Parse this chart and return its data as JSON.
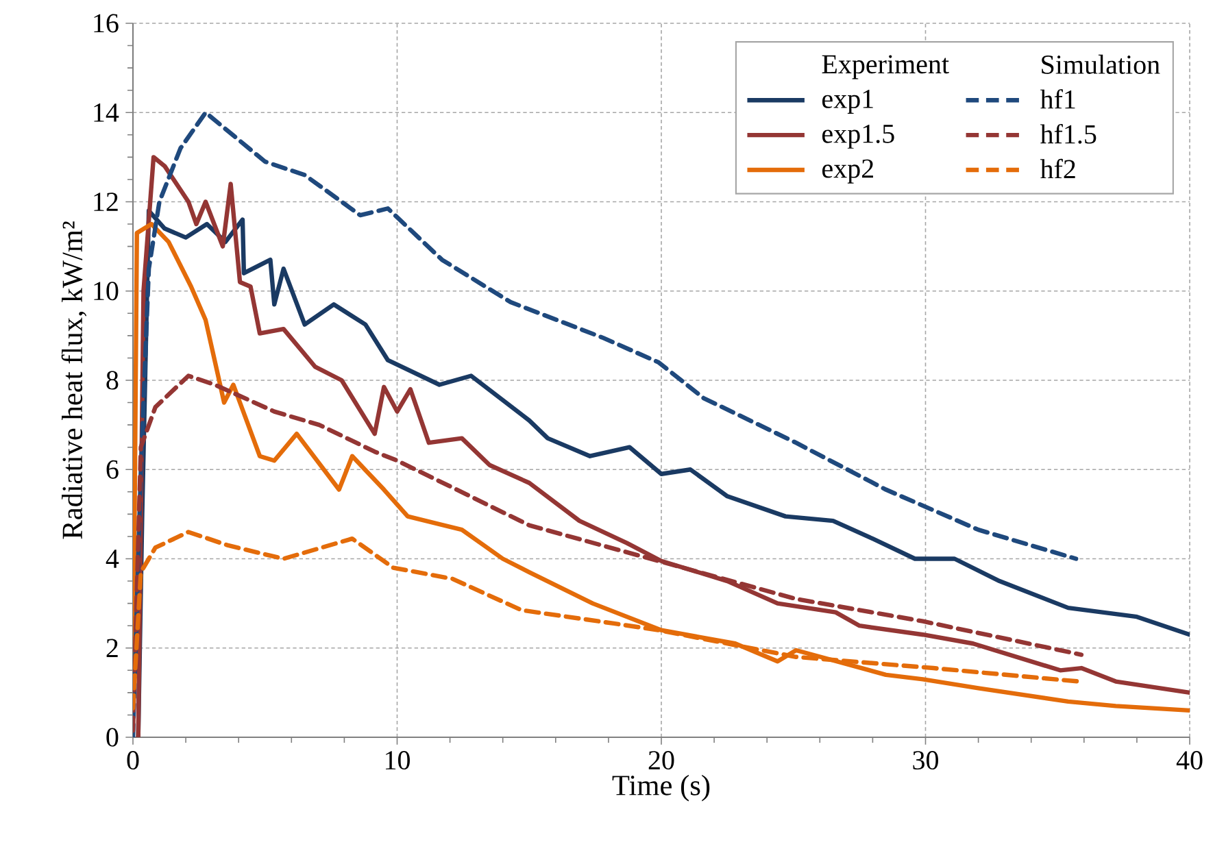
{
  "chart_data": {
    "type": "line",
    "xlabel": "Time (s)",
    "ylabel": "Radiative  heat flux,  kW/m²",
    "annotations": [
      "Experiment",
      "Simulation"
    ],
    "xlim": [
      0,
      40
    ],
    "ylim": [
      0,
      16
    ],
    "xticks": [
      0,
      10,
      20,
      30,
      40
    ],
    "yticks": [
      0,
      2,
      4,
      6,
      8,
      10,
      12,
      14,
      16
    ],
    "grid": true,
    "legend": "top right",
    "marker": "none",
    "series": [
      {
        "name": "exp1",
        "color": "#1a3a63",
        "line_style": "solid",
        "x": [
          0.2,
          0.35,
          0.6,
          1.2,
          2.0,
          2.8,
          3.5,
          4.15,
          4.2,
          5.2,
          5.35,
          5.7,
          6.5,
          7.6,
          8.8,
          9.65,
          11.6,
          12.8,
          15.0,
          15.7,
          17.3,
          18.8,
          20.0,
          21.1,
          22.5,
          24.7,
          26.5,
          28.0,
          29.6,
          31.1,
          32.8,
          35.4,
          38.0,
          40
        ],
        "values": [
          0,
          5,
          11.8,
          11.4,
          11.2,
          11.5,
          11.1,
          11.6,
          10.4,
          10.7,
          9.7,
          10.5,
          9.25,
          9.7,
          9.25,
          8.45,
          7.9,
          8.1,
          7.1,
          6.7,
          6.3,
          6.5,
          5.9,
          6.0,
          5.4,
          4.95,
          4.85,
          4.45,
          4.0,
          4.0,
          3.5,
          2.9,
          2.7,
          2.3
        ]
      },
      {
        "name": "exp1.5",
        "color": "#943634",
        "line_style": "solid",
        "x": [
          0.2,
          0.4,
          0.78,
          1.2,
          2.1,
          2.4,
          2.75,
          3.4,
          3.7,
          4.05,
          4.45,
          4.8,
          5.7,
          6.9,
          7.9,
          9.15,
          9.5,
          10.0,
          10.5,
          11.2,
          12.45,
          13.5,
          15.0,
          16.9,
          18.7,
          20.0,
          22.5,
          24.4,
          26.6,
          27.5,
          29.9,
          31.8,
          35.1,
          35.9,
          37.2,
          40
        ],
        "values": [
          0,
          10,
          13.0,
          12.8,
          12.0,
          11.5,
          12.0,
          11.0,
          12.4,
          10.2,
          10.1,
          9.05,
          9.15,
          8.3,
          8.0,
          6.8,
          7.85,
          7.3,
          7.8,
          6.6,
          6.7,
          6.1,
          5.7,
          4.85,
          4.35,
          3.95,
          3.5,
          3.0,
          2.8,
          2.5,
          2.3,
          2.1,
          1.5,
          1.55,
          1.25,
          1.0
        ]
      },
      {
        "name": "exp2",
        "color": "#e46c0a",
        "line_style": "solid",
        "x": [
          0,
          0.15,
          0.7,
          1.35,
          2.2,
          2.75,
          3.3,
          3.45,
          3.8,
          4.8,
          5.35,
          6.2,
          7.8,
          8.3,
          9.5,
          10.4,
          12.45,
          14.0,
          15.0,
          17.4,
          20.0,
          22.8,
          24.4,
          25.1,
          28.5,
          29.9,
          32.0,
          35.4,
          37.2,
          40
        ],
        "values": [
          0.3,
          11.3,
          11.5,
          11.1,
          10.1,
          9.35,
          7.9,
          7.5,
          7.9,
          6.3,
          6.2,
          6.8,
          5.55,
          6.3,
          5.55,
          4.95,
          4.65,
          4.0,
          3.7,
          3.0,
          2.4,
          2.1,
          1.7,
          1.95,
          1.4,
          1.3,
          1.1,
          0.8,
          0.7,
          0.6
        ]
      },
      {
        "name": "hf1",
        "color": "#1f497d",
        "line_style": "dashed",
        "x": [
          0,
          0.3,
          0.6,
          1.0,
          1.8,
          2.75,
          5.0,
          6.5,
          8.6,
          9.65,
          11.7,
          14.3,
          17.8,
          19.9,
          21.6,
          25.1,
          28.5,
          32.0,
          35.7
        ],
        "values": [
          0,
          6,
          10.5,
          12.0,
          13.2,
          14.0,
          12.9,
          12.6,
          11.7,
          11.85,
          10.7,
          9.75,
          8.95,
          8.4,
          7.6,
          6.6,
          5.55,
          4.65,
          4.0
        ]
      },
      {
        "name": "hf1.5",
        "color": "#943634",
        "line_style": "dashed",
        "x": [
          0,
          0.3,
          0.85,
          2.1,
          3.1,
          5.35,
          7.05,
          9.15,
          10.0,
          12.6,
          15.0,
          19.9,
          25.1,
          29.9,
          35.9
        ],
        "values": [
          0.15,
          6.5,
          7.4,
          8.1,
          7.9,
          7.3,
          7.0,
          6.4,
          6.2,
          5.45,
          4.75,
          3.95,
          3.1,
          2.6,
          1.85
        ]
      },
      {
        "name": "hf2",
        "color": "#e46c0a",
        "line_style": "dashed",
        "x": [
          0,
          0.3,
          0.85,
          2.1,
          3.6,
          5.7,
          8.3,
          9.85,
          12.1,
          14.7,
          18.2,
          19.9,
          25.1,
          30.3,
          35.8
        ],
        "values": [
          0.65,
          3.7,
          4.25,
          4.6,
          4.3,
          4.0,
          4.45,
          3.8,
          3.55,
          2.85,
          2.55,
          2.4,
          1.8,
          1.55,
          1.25
        ]
      }
    ]
  }
}
